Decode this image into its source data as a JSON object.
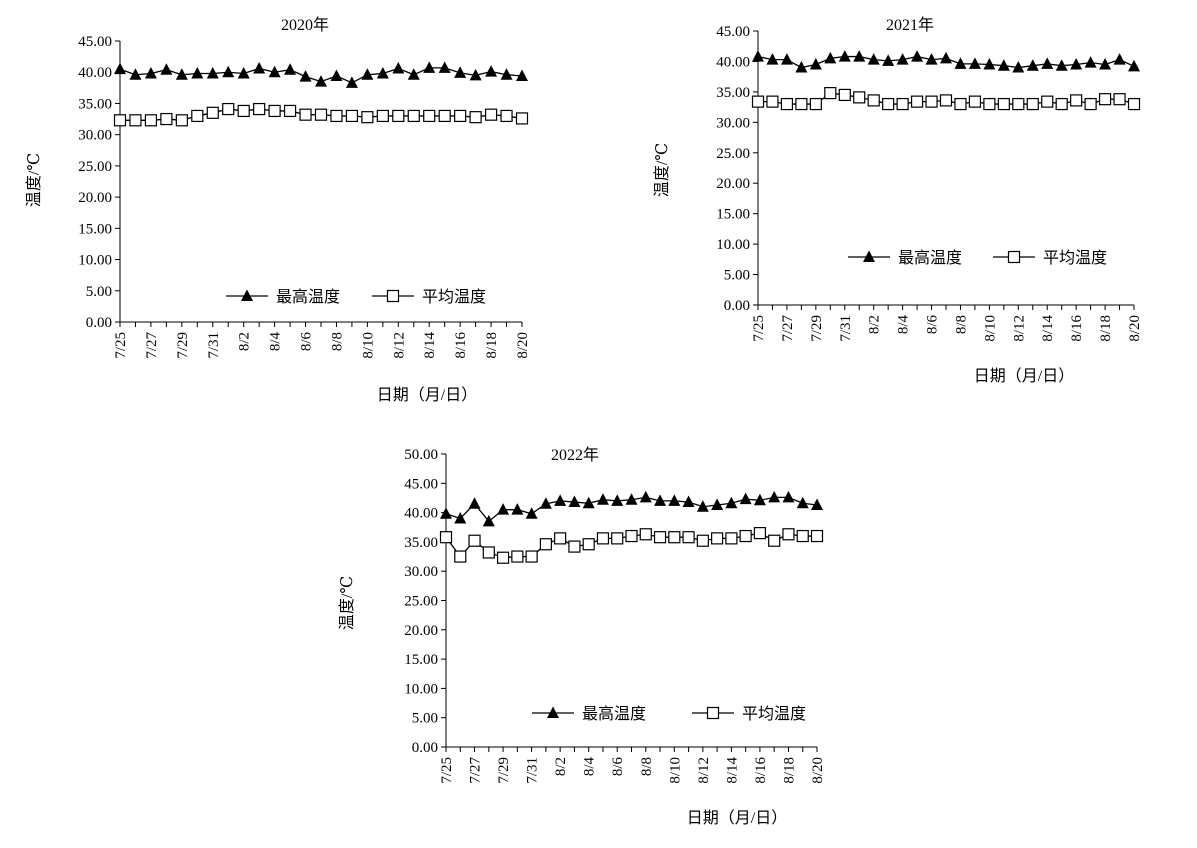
{
  "colors": {
    "line": "#000000",
    "background": "#ffffff"
  },
  "chart_data": [
    {
      "type": "line",
      "title": "2020年",
      "xlabel": "日期（月/日）",
      "ylabel": "温度/℃",
      "ylim": [
        0,
        45
      ],
      "yticks": [
        "0.00",
        "5.00",
        "10.00",
        "15.00",
        "20.00",
        "25.00",
        "30.00",
        "35.00",
        "40.00",
        "45.00"
      ],
      "xtick_labels": [
        "7/25",
        "7/27",
        "7/29",
        "7/31",
        "8/2",
        "8/4",
        "8/6",
        "8/8",
        "8/10",
        "8/12",
        "8/14",
        "8/16",
        "8/18",
        "8/20"
      ],
      "legend_position": "bottom-right",
      "series": [
        {
          "name": "最高温度",
          "marker": "filled-triangle",
          "values": [
            40.5,
            39.6,
            39.8,
            40.4,
            39.6,
            39.8,
            39.8,
            40.0,
            39.8,
            40.6,
            40.0,
            40.4,
            39.3,
            38.5,
            39.4,
            38.3,
            39.6,
            39.8,
            40.6,
            39.6,
            40.7,
            40.7,
            39.9,
            39.5,
            40.1,
            39.6,
            39.4
          ]
        },
        {
          "name": "平均温度",
          "marker": "open-square",
          "values": [
            32.3,
            32.3,
            32.3,
            32.5,
            32.3,
            33.0,
            33.5,
            34.1,
            33.8,
            34.1,
            33.8,
            33.8,
            33.2,
            33.2,
            33.0,
            33.0,
            32.8,
            33.0,
            33.0,
            33.0,
            33.0,
            33.0,
            33.0,
            32.8,
            33.2,
            33.0,
            32.6
          ]
        }
      ]
    },
    {
      "type": "line",
      "title": "2021年",
      "xlabel": "日期（月/日）",
      "ylabel": "温度/℃",
      "ylim": [
        0,
        45
      ],
      "yticks": [
        "0.00",
        "5.00",
        "10.00",
        "15.00",
        "20.00",
        "25.00",
        "30.00",
        "35.00",
        "40.00",
        "45.00"
      ],
      "xtick_labels": [
        "7/25",
        "7/27",
        "7/29",
        "7/31",
        "8/2",
        "8/4",
        "8/6",
        "8/8",
        "8/10",
        "8/12",
        "8/14",
        "8/16",
        "8/18",
        "8/20"
      ],
      "legend_position": "middle-right",
      "series": [
        {
          "name": "最高温度",
          "marker": "filled-triangle",
          "values": [
            40.8,
            40.3,
            40.3,
            39.0,
            39.5,
            40.5,
            40.8,
            40.8,
            40.3,
            40.1,
            40.3,
            40.8,
            40.3,
            40.5,
            39.6,
            39.6,
            39.5,
            39.3,
            39.0,
            39.3,
            39.6,
            39.3,
            39.5,
            39.8,
            39.5,
            40.3,
            39.2
          ]
        },
        {
          "name": "平均温度",
          "marker": "open-square",
          "values": [
            33.4,
            33.4,
            33.0,
            33.0,
            33.0,
            34.8,
            34.5,
            34.1,
            33.6,
            33.0,
            33.0,
            33.4,
            33.4,
            33.6,
            33.0,
            33.4,
            33.0,
            33.0,
            33.0,
            33.0,
            33.4,
            33.0,
            33.6,
            33.0,
            33.8,
            33.8,
            33.0
          ]
        }
      ]
    },
    {
      "type": "line",
      "title": "2022年",
      "xlabel": "日期（月/日）",
      "ylabel": "温度/℃",
      "ylim": [
        0,
        50
      ],
      "yticks": [
        "0.00",
        "5.00",
        "10.00",
        "15.00",
        "20.00",
        "25.00",
        "30.00",
        "35.00",
        "40.00",
        "45.00",
        "50.00"
      ],
      "xtick_labels": [
        "7/25",
        "7/27",
        "7/29",
        "7/31",
        "8/2",
        "8/4",
        "8/6",
        "8/8",
        "8/10",
        "8/12",
        "8/14",
        "8/16",
        "8/18",
        "8/20"
      ],
      "legend_position": "bottom-right",
      "series": [
        {
          "name": "最高温度",
          "marker": "filled-triangle",
          "values": [
            39.8,
            39.0,
            41.5,
            38.5,
            40.5,
            40.5,
            39.8,
            41.5,
            42.0,
            41.8,
            41.6,
            42.2,
            42.0,
            42.2,
            42.6,
            42.0,
            42.0,
            41.8,
            41.0,
            41.3,
            41.6,
            42.3,
            42.1,
            42.6,
            42.6,
            41.6,
            41.3
          ]
        },
        {
          "name": "平均温度",
          "marker": "open-square",
          "values": [
            35.8,
            32.5,
            35.2,
            33.2,
            32.3,
            32.5,
            32.5,
            34.6,
            35.6,
            34.2,
            34.6,
            35.6,
            35.6,
            36.0,
            36.3,
            35.8,
            35.8,
            35.8,
            35.2,
            35.6,
            35.6,
            36.0,
            36.5,
            35.2,
            36.3,
            36.0,
            36.0
          ]
        }
      ]
    }
  ]
}
